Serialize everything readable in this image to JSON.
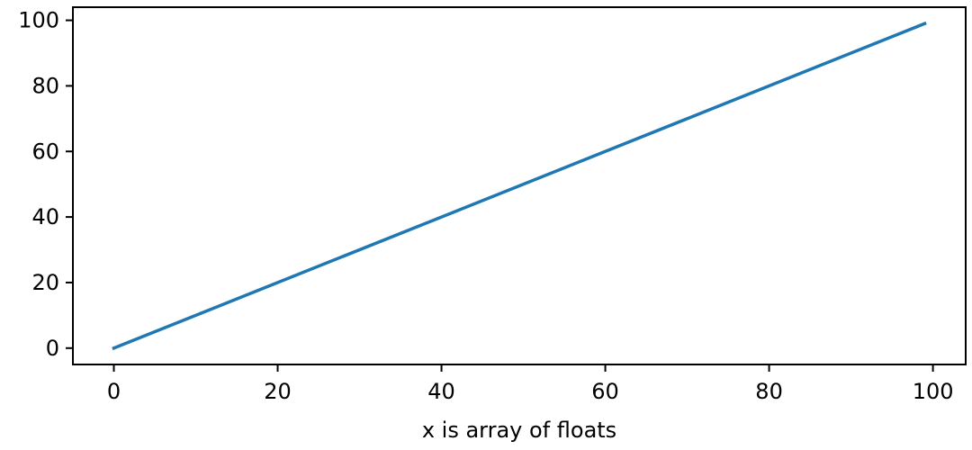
{
  "chart_data": {
    "type": "line",
    "title": "",
    "xlabel": "x is array of floats",
    "ylabel": "",
    "xlim": [
      -5,
      104
    ],
    "ylim": [
      -5,
      104
    ],
    "xticks": [
      0,
      20,
      40,
      60,
      80,
      100
    ],
    "yticks": [
      0,
      20,
      40,
      60,
      80,
      100
    ],
    "grid": false,
    "legend": "none",
    "series": [
      {
        "color": "#1f77b4",
        "x": [
          0,
          99
        ],
        "y": [
          0,
          99
        ]
      }
    ]
  }
}
